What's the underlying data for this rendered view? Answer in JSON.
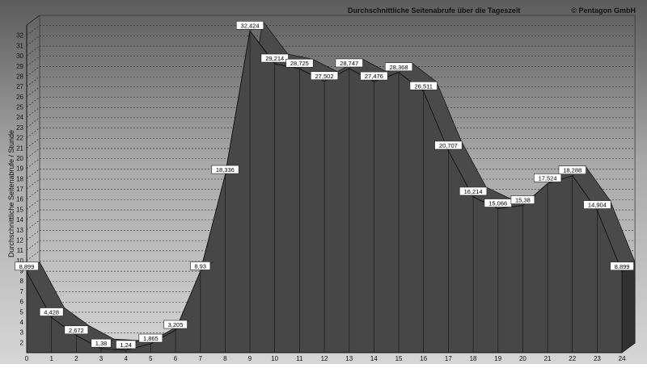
{
  "header": {
    "title": "Durchschnittliche Seitenabrufe über die Tageszeit",
    "copyright": "© Pentagon GmbH"
  },
  "chart_data": {
    "type": "area",
    "title": "Durchschnittliche Seitenabrufe über die Tageszeit",
    "xlabel": "",
    "ylabel": "Durchschnittliche Seitenabrufe / Stunde",
    "x": [
      0,
      1,
      2,
      3,
      4,
      5,
      6,
      7,
      8,
      9,
      10,
      11,
      12,
      13,
      14,
      15,
      16,
      17,
      18,
      19,
      20,
      21,
      22,
      23,
      24
    ],
    "values": [
      8.899,
      4.428,
      2.672,
      1.38,
      1.24,
      1.865,
      3.205,
      8.93,
      18.336,
      32.424,
      29.214,
      28.725,
      27.502,
      28.747,
      27.476,
      28.368,
      26.511,
      20.707,
      16.214,
      15.066,
      15.38,
      17.524,
      18.288,
      14.904,
      8.899
    ],
    "data_labels": [
      "8,899",
      "4,428",
      "2,672",
      "1,38",
      "1,24",
      "1,865",
      "3,205",
      "8,93",
      "18,336",
      "32,424",
      "29,214",
      "28,725",
      "27,502",
      "28,747",
      "27,476",
      "28,368",
      "26,511",
      "20,707",
      "16,214",
      "15,066",
      "15,38",
      "17,524",
      "18,288",
      "14,904",
      "8,899"
    ],
    "xlim": [
      0,
      24
    ],
    "ylim": [
      1,
      33
    ],
    "y_ticks": [
      2,
      3,
      4,
      5,
      6,
      7,
      8,
      9,
      10,
      11,
      12,
      13,
      14,
      15,
      16,
      17,
      18,
      19,
      20,
      21,
      22,
      23,
      24,
      25,
      26,
      27,
      28,
      29,
      30,
      31,
      32
    ],
    "grid": true,
    "legend": "none"
  }
}
